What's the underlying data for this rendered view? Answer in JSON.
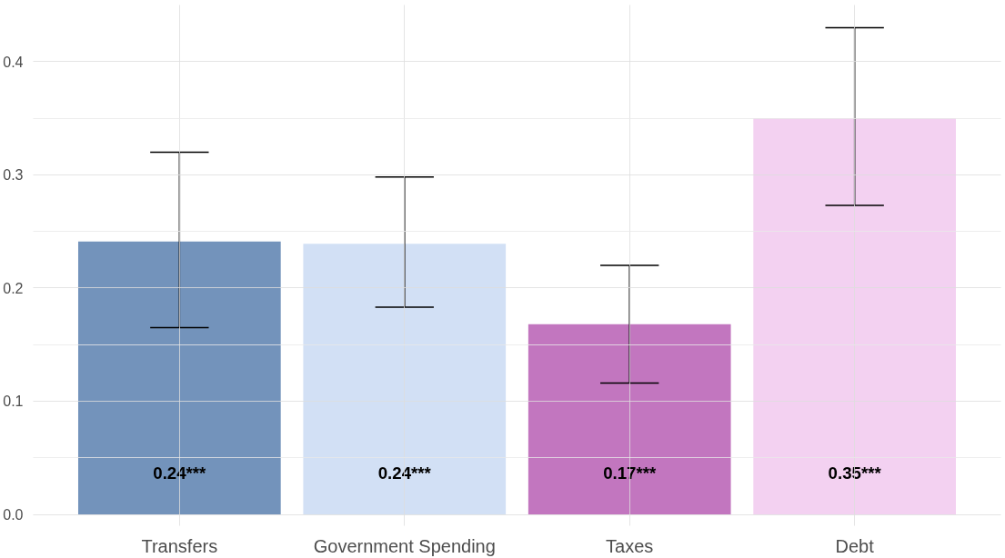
{
  "chart_data": {
    "type": "bar",
    "categories": [
      "Transfers",
      "Government Spending",
      "Taxes",
      "Debt"
    ],
    "values": [
      0.241,
      0.239,
      0.168,
      0.35
    ],
    "colors": [
      "#7393bb",
      "#d2e0f5",
      "#c276bf",
      "#f3d1f1"
    ],
    "errors": [
      [
        0.165,
        0.32
      ],
      [
        0.183,
        0.298
      ],
      [
        0.116,
        0.22
      ],
      [
        0.273,
        0.43
      ]
    ],
    "value_labels": [
      "0.24***",
      "0.24***",
      "0.17***",
      "0.35***"
    ],
    "ylim": [
      -0.01,
      0.45
    ],
    "yticks": [
      {
        "value": 0,
        "label": "0.0"
      },
      0.1,
      0.2,
      0.3,
      0.4
    ],
    "grid": true
  }
}
